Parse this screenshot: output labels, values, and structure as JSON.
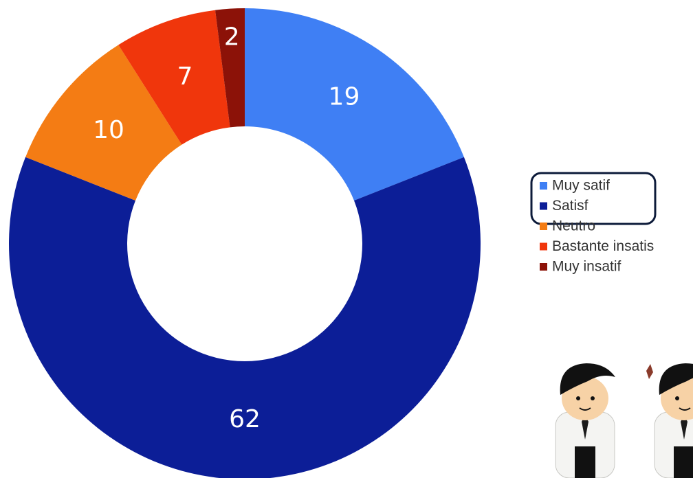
{
  "chart_data": {
    "type": "donut",
    "categories": [
      "Muy satif",
      "Satisf",
      "Neutro",
      "Bastante insatis",
      "Muy insatif"
    ],
    "values": [
      19,
      62,
      10,
      7,
      2
    ],
    "colors": [
      "#3f7ff4",
      "#0c1e97",
      "#f47c14",
      "#f0360c",
      "#8c1208"
    ],
    "legend": "right"
  }
}
